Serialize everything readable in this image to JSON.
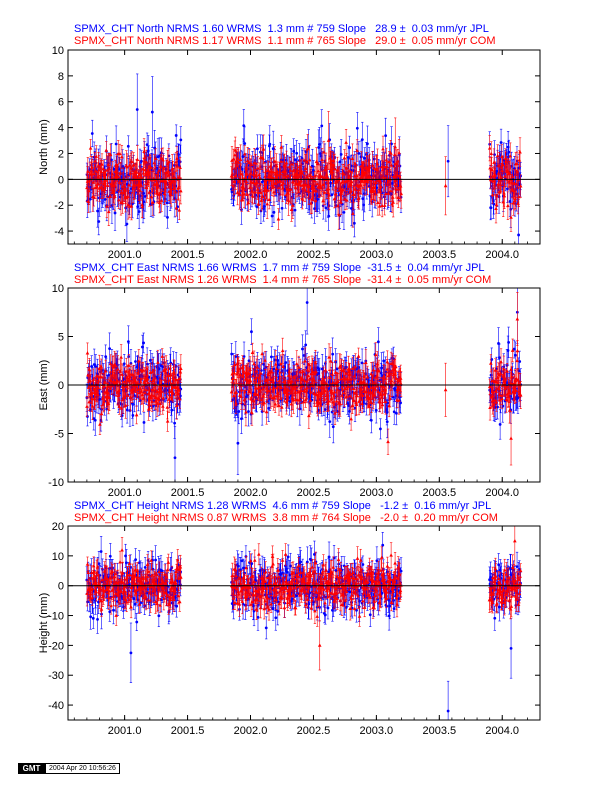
{
  "panels": [
    {
      "header_jpl": "SPMX_CHT North NRMS 1.60 WRMS  1.3 mm # 759 Slope   28.9 ±  0.03 mm/yr JPL",
      "header_com": "SPMX_CHT North NRMS 1.17 WRMS  1.1 mm # 765 Slope   29.0 ±  0.05 mm/yr COM"
    },
    {
      "header_jpl": "SPMX_CHT East NRMS 1.66 WRMS  1.7 mm # 759 Slope  -31.5 ±  0.04 mm/yr JPL",
      "header_com": "SPMX_CHT East NRMS 1.26 WRMS  1.4 mm # 765 Slope  -31.4 ±  0.05 mm/yr COM"
    },
    {
      "header_jpl": "SPMX_CHT Height NRMS 1.28 WRMS  4.6 mm # 759 Slope   -1.2 ±  0.16 mm/yr JPL",
      "header_com": "SPMX_CHT Height NRMS 0.87 WRMS  3.8 mm # 764 Slope   -2.0 ±  0.20 mm/yr COM"
    }
  ],
  "footer": {
    "logo": "GMT",
    "timestamp": "2004 Apr 20 10:56:26"
  },
  "colors": {
    "jpl": "#0000ff",
    "com": "#ff0000",
    "axis": "#000000"
  },
  "chart_data": [
    {
      "type": "scatter",
      "title": "",
      "xlabel": "",
      "ylabel": "North (mm)",
      "xlim": [
        2000.55,
        2004.3
      ],
      "ylim": [
        -5,
        10
      ],
      "xticks": [
        2001.0,
        2001.5,
        2002.0,
        2002.5,
        2003.0,
        2003.5,
        2004.0
      ],
      "xtick_labels": [
        "2001.0",
        "2001.5",
        "2002.0",
        "2002.5",
        "2003.0",
        "2003.5",
        "2004.0"
      ],
      "yticks": [
        -4,
        -2,
        0,
        2,
        4,
        6,
        8,
        10
      ],
      "ytick_labels": [
        "-4",
        "-2",
        "0",
        "2",
        "4",
        "6",
        "8",
        "10"
      ],
      "zero_line": true,
      "grid": false,
      "series": [
        {
          "name": "JPL",
          "color": "#0000ff",
          "marker": "circle",
          "segments": [
            [
              2000.7,
              2001.45
            ],
            [
              2001.85,
              2003.2
            ],
            [
              2003.9,
              2004.15
            ]
          ],
          "scatter_sd": 1.3,
          "error_bar": 1.1,
          "outliers": [
            [
              2001.1,
              5.4
            ],
            [
              2001.22,
              5.2
            ],
            [
              2003.57,
              1.4
            ],
            [
              2004.13,
              -4.3
            ]
          ]
        },
        {
          "name": "COM",
          "color": "#ff0000",
          "marker": "triangle",
          "segments": [
            [
              2000.7,
              2001.45
            ],
            [
              2001.85,
              2003.2
            ],
            [
              2003.9,
              2004.15
            ]
          ],
          "scatter_sd": 1.1,
          "error_bar": 0.9,
          "outliers": [
            [
              2003.55,
              -0.5
            ],
            [
              2002.62,
              3.0
            ],
            [
              2003.15,
              2.5
            ]
          ]
        }
      ]
    },
    {
      "type": "scatter",
      "title": "",
      "xlabel": "",
      "ylabel": "East (mm)",
      "xlim": [
        2000.55,
        2004.3
      ],
      "ylim": [
        -10,
        10
      ],
      "xticks": [
        2001.0,
        2001.5,
        2002.0,
        2002.5,
        2003.0,
        2003.5,
        2004.0
      ],
      "xtick_labels": [
        "2001.0",
        "2001.5",
        "2002.0",
        "2002.5",
        "2003.0",
        "2003.5",
        "2004.0"
      ],
      "yticks": [
        -10,
        -5,
        0,
        5,
        10
      ],
      "ytick_labels": [
        "-10",
        "-5",
        "0",
        "5",
        "10"
      ],
      "zero_line": true,
      "grid": false,
      "series": [
        {
          "name": "JPL",
          "color": "#0000ff",
          "marker": "circle",
          "segments": [
            [
              2000.7,
              2001.45
            ],
            [
              2001.85,
              2003.2
            ],
            [
              2003.9,
              2004.15
            ]
          ],
          "scatter_sd": 1.7,
          "error_bar": 1.3,
          "outliers": [
            [
              2002.45,
              8.5
            ],
            [
              2001.4,
              -7.5
            ],
            [
              2004.12,
              7.5
            ],
            [
              2001.9,
              -6.0
            ]
          ]
        },
        {
          "name": "COM",
          "color": "#ff0000",
          "marker": "triangle",
          "segments": [
            [
              2000.7,
              2001.45
            ],
            [
              2001.85,
              2003.2
            ],
            [
              2003.9,
              2004.15
            ]
          ],
          "scatter_sd": 1.4,
          "error_bar": 1.1,
          "outliers": [
            [
              2003.55,
              -0.5
            ],
            [
              2004.12,
              6.8
            ],
            [
              2004.07,
              -5.5
            ]
          ]
        }
      ]
    },
    {
      "type": "scatter",
      "title": "",
      "xlabel": "",
      "ylabel": "Height (mm)",
      "xlim": [
        2000.55,
        2004.3
      ],
      "ylim": [
        -45,
        20
      ],
      "xticks": [
        2001.0,
        2001.5,
        2002.0,
        2002.5,
        2003.0,
        2003.5,
        2004.0
      ],
      "xtick_labels": [
        "2001.0",
        "2001.5",
        "2002.0",
        "2002.5",
        "2003.0",
        "2003.5",
        "2004.0"
      ],
      "yticks": [
        -40,
        -30,
        -20,
        -10,
        0,
        10,
        20
      ],
      "ytick_labels": [
        "-40",
        "-30",
        "-20",
        "-10",
        "0",
        "10",
        "20"
      ],
      "zero_line": true,
      "grid": false,
      "series": [
        {
          "name": "JPL",
          "color": "#0000ff",
          "marker": "circle",
          "segments": [
            [
              2000.7,
              2001.45
            ],
            [
              2001.85,
              2003.2
            ],
            [
              2003.9,
              2004.15
            ]
          ],
          "scatter_sd": 4.6,
          "error_bar": 4.0,
          "outliers": [
            [
              2003.57,
              -42.0
            ],
            [
              2004.07,
              -21.0
            ],
            [
              2001.05,
              -22.5
            ]
          ]
        },
        {
          "name": "COM",
          "color": "#ff0000",
          "marker": "triangle",
          "segments": [
            [
              2000.7,
              2001.45
            ],
            [
              2001.85,
              2003.2
            ],
            [
              2003.9,
              2004.15
            ]
          ],
          "scatter_sd": 3.8,
          "error_bar": 3.3,
          "outliers": [
            [
              2004.1,
              15.0
            ],
            [
              2002.55,
              -20.0
            ]
          ]
        }
      ]
    }
  ]
}
